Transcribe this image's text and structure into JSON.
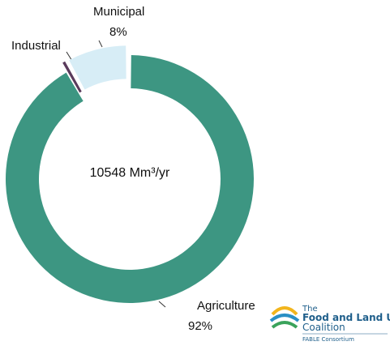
{
  "chart_data": {
    "type": "donut",
    "categories": [
      "Agriculture",
      "Industrial",
      "Municipal"
    ],
    "values": [
      92,
      0.4,
      8
    ],
    "value_labels": [
      "92%",
      null,
      "8%"
    ],
    "colors": [
      "#3d9682",
      "#5a3b5c",
      "#d7edf6"
    ],
    "explode": [
      false,
      true,
      true
    ],
    "center_text": "10548 Mm³/yr"
  },
  "logo": {
    "lines": [
      "The",
      "Food and Land Use",
      "Coalition",
      "FABLE Consortium"
    ]
  }
}
